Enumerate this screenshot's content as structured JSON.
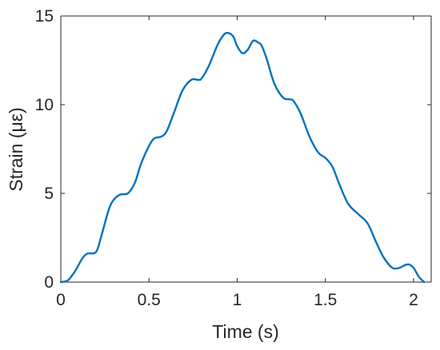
{
  "chart_data": {
    "type": "line",
    "title": "",
    "xlabel": "Time (s)",
    "ylabel": "Strain (με)",
    "xlim": [
      0,
      2.1
    ],
    "ylim": [
      0,
      15
    ],
    "xticks": [
      0,
      0.5,
      1,
      1.5,
      2
    ],
    "xtick_labels": [
      "0",
      "0.5",
      "1",
      "1.5",
      "2"
    ],
    "yticks": [
      0,
      5,
      10,
      15
    ],
    "ytick_labels": [
      "0",
      "5",
      "10",
      "15"
    ],
    "grid": false,
    "legend": "none",
    "series": [
      {
        "color": "#0072BD",
        "x": [
          0,
          0.04,
          0.08,
          0.12,
          0.15,
          0.2,
          0.23,
          0.28,
          0.33,
          0.38,
          0.42,
          0.46,
          0.52,
          0.57,
          0.6,
          0.64,
          0.69,
          0.74,
          0.78,
          0.8,
          0.84,
          0.89,
          0.93,
          0.96,
          0.98,
          1.0,
          1.03,
          1.06,
          1.09,
          1.12,
          1.14,
          1.17,
          1.21,
          1.26,
          1.3,
          1.32,
          1.36,
          1.41,
          1.46,
          1.5,
          1.54,
          1.58,
          1.63,
          1.69,
          1.74,
          1.79,
          1.83,
          1.88,
          1.92,
          1.94,
          1.97,
          2.0,
          2.03,
          2.06
        ],
        "y": [
          0,
          0.1,
          0.6,
          1.3,
          1.6,
          1.7,
          2.6,
          4.3,
          4.9,
          5.0,
          5.6,
          6.8,
          8.0,
          8.2,
          8.5,
          9.5,
          10.8,
          11.4,
          11.4,
          11.5,
          12.2,
          13.4,
          14.0,
          14.0,
          13.8,
          13.3,
          12.9,
          13.1,
          13.6,
          13.5,
          13.3,
          12.5,
          11.2,
          10.4,
          10.3,
          10.2,
          9.5,
          8.2,
          7.3,
          7.0,
          6.5,
          5.5,
          4.4,
          3.8,
          3.3,
          2.2,
          1.4,
          0.8,
          0.8,
          0.9,
          1.0,
          0.8,
          0.3,
          0.0
        ]
      }
    ]
  }
}
